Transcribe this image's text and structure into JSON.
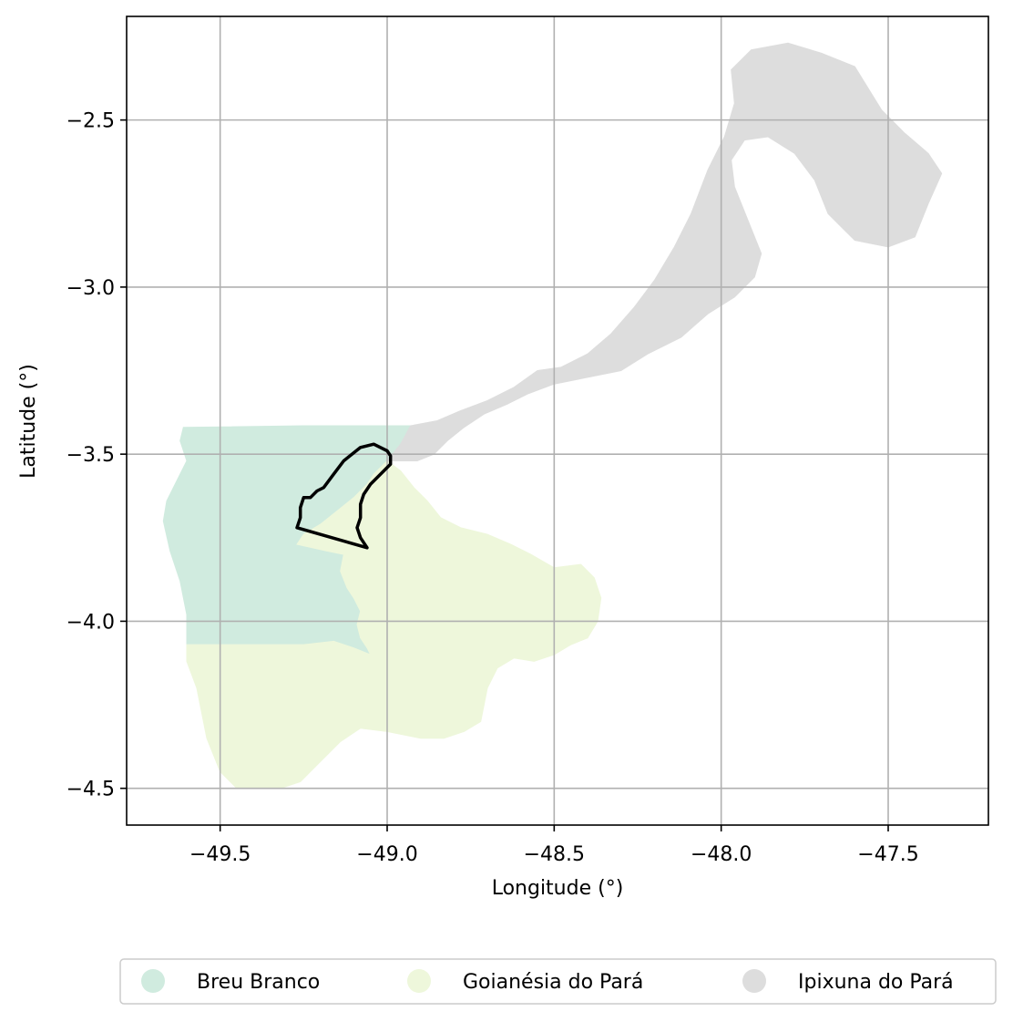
{
  "chart_data": {
    "type": "map",
    "xlabel": "Longitude (°)",
    "ylabel": "Latitude (°)",
    "xlim": [
      -49.78,
      -47.2
    ],
    "ylim": [
      -4.61,
      -2.19
    ],
    "grid": true,
    "x_ticks": [
      {
        "value": -49.5,
        "label": "−49.5"
      },
      {
        "value": -49.0,
        "label": "−49.0"
      },
      {
        "value": -48.5,
        "label": "−48.5"
      },
      {
        "value": -48.0,
        "label": "−48.0"
      },
      {
        "value": -47.5,
        "label": "−47.5"
      }
    ],
    "y_ticks": [
      {
        "value": -2.5,
        "label": "−2.5"
      },
      {
        "value": -3.0,
        "label": "−3.0"
      },
      {
        "value": -3.5,
        "label": "−3.5"
      },
      {
        "value": -4.0,
        "label": "−4.0"
      },
      {
        "value": -4.5,
        "label": "−4.5"
      }
    ],
    "legend_position": "bottom-center",
    "regions": [
      {
        "name": "Breu Branco",
        "color": "#d0ebdf",
        "coords": [
          [
            -49.61,
            -3.42
          ],
          [
            -49.25,
            -3.415
          ],
          [
            -48.93,
            -3.415
          ],
          [
            -48.96,
            -3.47
          ],
          [
            -49.0,
            -3.52
          ],
          [
            -49.04,
            -3.56
          ],
          [
            -49.06,
            -3.59
          ],
          [
            -49.1,
            -3.63
          ],
          [
            -49.15,
            -3.67
          ],
          [
            -49.2,
            -3.71
          ],
          [
            -49.25,
            -3.74
          ],
          [
            -49.27,
            -3.77
          ],
          [
            -49.18,
            -3.79
          ],
          [
            -49.13,
            -3.8
          ],
          [
            -49.14,
            -3.85
          ],
          [
            -49.12,
            -3.9
          ],
          [
            -49.1,
            -3.93
          ],
          [
            -49.08,
            -3.97
          ],
          [
            -49.09,
            -4.01
          ],
          [
            -49.08,
            -4.05
          ],
          [
            -49.06,
            -4.08
          ],
          [
            -49.05,
            -4.1
          ],
          [
            -49.1,
            -4.08
          ],
          [
            -49.16,
            -4.06
          ],
          [
            -49.25,
            -4.07
          ],
          [
            -49.4,
            -4.07
          ],
          [
            -49.6,
            -4.07
          ],
          [
            -49.6,
            -3.98
          ],
          [
            -49.62,
            -3.88
          ],
          [
            -49.65,
            -3.79
          ],
          [
            -49.67,
            -3.7
          ],
          [
            -49.66,
            -3.64
          ],
          [
            -49.63,
            -3.58
          ],
          [
            -49.6,
            -3.52
          ],
          [
            -49.62,
            -3.46
          ]
        ]
      },
      {
        "name": "Goianésia do Pará",
        "color": "#eef7db",
        "coords": [
          [
            -49.0,
            -3.52
          ],
          [
            -48.96,
            -3.55
          ],
          [
            -48.92,
            -3.6
          ],
          [
            -48.88,
            -3.64
          ],
          [
            -48.84,
            -3.69
          ],
          [
            -48.78,
            -3.72
          ],
          [
            -48.7,
            -3.74
          ],
          [
            -48.63,
            -3.77
          ],
          [
            -48.57,
            -3.8
          ],
          [
            -48.5,
            -3.84
          ],
          [
            -48.42,
            -3.83
          ],
          [
            -48.38,
            -3.87
          ],
          [
            -48.36,
            -3.93
          ],
          [
            -48.37,
            -4.0
          ],
          [
            -48.4,
            -4.05
          ],
          [
            -48.45,
            -4.07
          ],
          [
            -48.5,
            -4.1
          ],
          [
            -48.56,
            -4.12
          ],
          [
            -48.62,
            -4.11
          ],
          [
            -48.67,
            -4.14
          ],
          [
            -48.7,
            -4.2
          ],
          [
            -48.72,
            -4.3
          ],
          [
            -48.77,
            -4.33
          ],
          [
            -48.83,
            -4.35
          ],
          [
            -48.9,
            -4.35
          ],
          [
            -49.0,
            -4.33
          ],
          [
            -49.08,
            -4.32
          ],
          [
            -49.14,
            -4.36
          ],
          [
            -49.2,
            -4.42
          ],
          [
            -49.26,
            -4.48
          ],
          [
            -49.32,
            -4.5
          ],
          [
            -49.45,
            -4.5
          ],
          [
            -49.5,
            -4.45
          ],
          [
            -49.54,
            -4.35
          ],
          [
            -49.57,
            -4.2
          ],
          [
            -49.6,
            -4.12
          ],
          [
            -49.6,
            -4.07
          ],
          [
            -49.4,
            -4.07
          ],
          [
            -49.25,
            -4.07
          ],
          [
            -49.16,
            -4.06
          ],
          [
            -49.1,
            -4.08
          ],
          [
            -49.05,
            -4.1
          ],
          [
            -49.06,
            -4.08
          ],
          [
            -49.08,
            -4.05
          ],
          [
            -49.09,
            -4.01
          ],
          [
            -49.08,
            -3.97
          ],
          [
            -49.1,
            -3.93
          ],
          [
            -49.12,
            -3.9
          ],
          [
            -49.14,
            -3.85
          ],
          [
            -49.13,
            -3.8
          ],
          [
            -49.18,
            -3.79
          ],
          [
            -49.27,
            -3.77
          ],
          [
            -49.25,
            -3.74
          ],
          [
            -49.2,
            -3.71
          ],
          [
            -49.15,
            -3.67
          ],
          [
            -49.1,
            -3.63
          ],
          [
            -49.06,
            -3.59
          ],
          [
            -49.04,
            -3.56
          ]
        ]
      },
      {
        "name": "Ipixuna do Pará",
        "color": "#dddddd",
        "coords": [
          [
            -48.93,
            -3.415
          ],
          [
            -48.85,
            -3.4
          ],
          [
            -48.78,
            -3.37
          ],
          [
            -48.7,
            -3.34
          ],
          [
            -48.62,
            -3.3
          ],
          [
            -48.55,
            -3.25
          ],
          [
            -48.48,
            -3.24
          ],
          [
            -48.4,
            -3.2
          ],
          [
            -48.33,
            -3.14
          ],
          [
            -48.26,
            -3.06
          ],
          [
            -48.2,
            -2.98
          ],
          [
            -48.14,
            -2.88
          ],
          [
            -48.09,
            -2.78
          ],
          [
            -48.04,
            -2.65
          ],
          [
            -47.99,
            -2.55
          ],
          [
            -47.96,
            -2.45
          ],
          [
            -47.97,
            -2.35
          ],
          [
            -47.91,
            -2.29
          ],
          [
            -47.8,
            -2.27
          ],
          [
            -47.7,
            -2.3
          ],
          [
            -47.6,
            -2.34
          ],
          [
            -47.52,
            -2.47
          ],
          [
            -47.45,
            -2.54
          ],
          [
            -47.38,
            -2.6
          ],
          [
            -47.34,
            -2.66
          ],
          [
            -47.38,
            -2.75
          ],
          [
            -47.42,
            -2.85
          ],
          [
            -47.5,
            -2.88
          ],
          [
            -47.6,
            -2.86
          ],
          [
            -47.68,
            -2.78
          ],
          [
            -47.72,
            -2.68
          ],
          [
            -47.78,
            -2.6
          ],
          [
            -47.86,
            -2.55
          ],
          [
            -47.93,
            -2.56
          ],
          [
            -47.97,
            -2.62
          ],
          [
            -47.96,
            -2.7
          ],
          [
            -47.92,
            -2.8
          ],
          [
            -47.88,
            -2.9
          ],
          [
            -47.9,
            -2.97
          ],
          [
            -47.96,
            -3.03
          ],
          [
            -48.04,
            -3.08
          ],
          [
            -48.12,
            -3.15
          ],
          [
            -48.22,
            -3.2
          ],
          [
            -48.3,
            -3.25
          ],
          [
            -48.4,
            -3.27
          ],
          [
            -48.5,
            -3.29
          ],
          [
            -48.58,
            -3.32
          ],
          [
            -48.64,
            -3.35
          ],
          [
            -48.71,
            -3.38
          ],
          [
            -48.77,
            -3.42
          ],
          [
            -48.82,
            -3.46
          ],
          [
            -48.86,
            -3.5
          ],
          [
            -48.91,
            -3.52
          ],
          [
            -48.96,
            -3.52
          ],
          [
            -49.0,
            -3.52
          ],
          [
            -48.96,
            -3.47
          ]
        ]
      }
    ],
    "highlight_outline": {
      "color": "#000000",
      "coords": [
        [
          -49.0,
          -3.49
        ],
        [
          -49.04,
          -3.47
        ],
        [
          -49.08,
          -3.48
        ],
        [
          -49.13,
          -3.52
        ],
        [
          -49.16,
          -3.56
        ],
        [
          -49.19,
          -3.6
        ],
        [
          -49.21,
          -3.61
        ],
        [
          -49.23,
          -3.63
        ],
        [
          -49.25,
          -3.63
        ],
        [
          -49.26,
          -3.66
        ],
        [
          -49.26,
          -3.69
        ],
        [
          -49.27,
          -3.72
        ],
        [
          -49.06,
          -3.78
        ],
        [
          -49.08,
          -3.75
        ],
        [
          -49.09,
          -3.72
        ],
        [
          -49.08,
          -3.69
        ],
        [
          -49.08,
          -3.65
        ],
        [
          -49.07,
          -3.62
        ],
        [
          -49.05,
          -3.59
        ],
        [
          -49.02,
          -3.56
        ],
        [
          -48.99,
          -3.53
        ],
        [
          -48.99,
          -3.505
        ]
      ]
    }
  },
  "legend": {
    "items": [
      {
        "label": "Breu Branco",
        "color": "#d0ebdf"
      },
      {
        "label": "Goianésia do Pará",
        "color": "#eef7db"
      },
      {
        "label": "Ipixuna do Pará",
        "color": "#dddddd"
      }
    ]
  }
}
